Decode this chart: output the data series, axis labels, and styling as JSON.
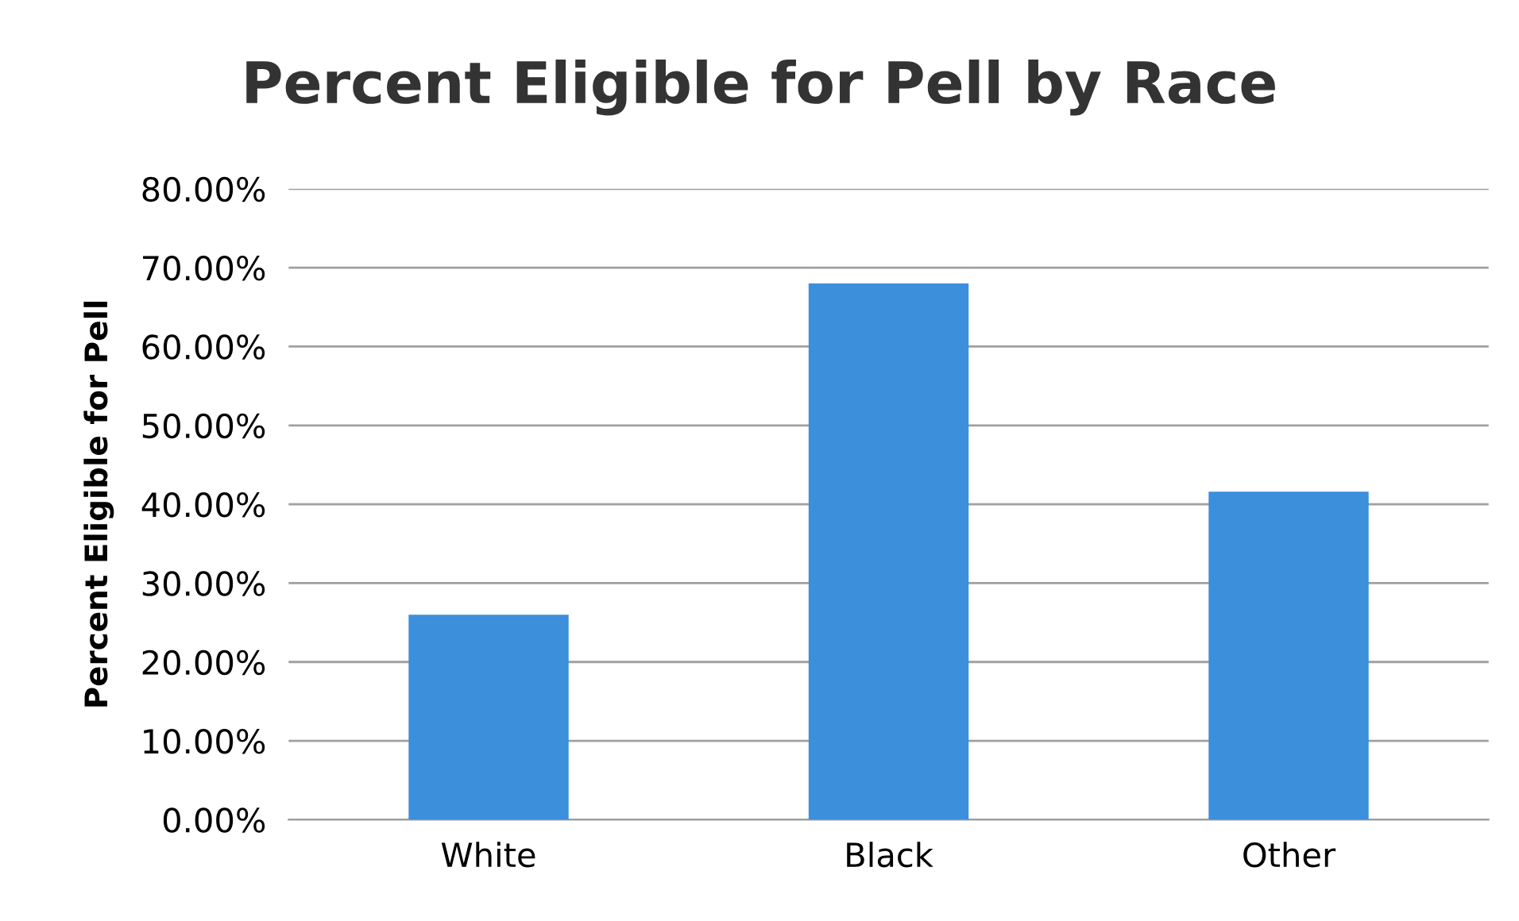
{
  "chart_data": {
    "type": "bar",
    "title": "Percent Eligible for Pell by Race",
    "ylabel": "Percent Eligible for Pell",
    "categories": [
      "White",
      "Black",
      "Other"
    ],
    "series": [
      {
        "color": "#3b8fdb",
        "values": [
          26,
          68,
          41.6
        ]
      }
    ],
    "ylim": [
      0,
      80
    ],
    "yticks": [
      {
        "value": 0,
        "label": "0.00%"
      },
      {
        "value": 10,
        "label": "10.00%"
      },
      {
        "value": 20,
        "label": "20.00%"
      },
      {
        "value": 30,
        "label": "30.00%"
      },
      {
        "value": 40,
        "label": "40.00%"
      },
      {
        "value": 50,
        "label": "50.00%"
      },
      {
        "value": 60,
        "label": "60.00%"
      },
      {
        "value": 70,
        "label": "70.00%"
      },
      {
        "value": 80,
        "label": "80.00%"
      }
    ],
    "grid": "y"
  }
}
